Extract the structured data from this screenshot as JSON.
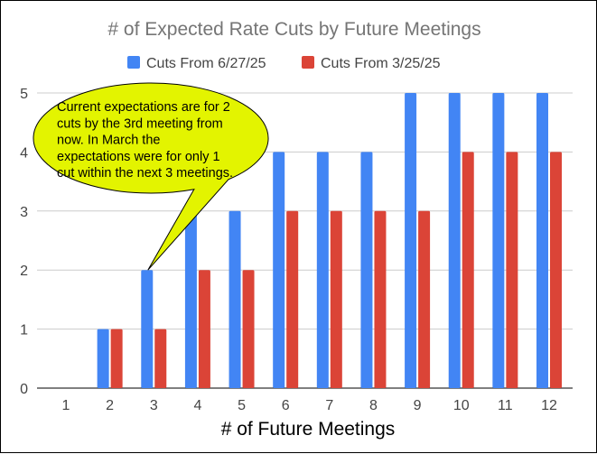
{
  "chart_data": {
    "type": "bar",
    "title": "# of Expected Rate Cuts by Future Meetings",
    "xlabel": "# of Future Meetings",
    "ylabel": "",
    "categories": [
      "1",
      "2",
      "3",
      "4",
      "5",
      "6",
      "7",
      "8",
      "9",
      "10",
      "11",
      "12"
    ],
    "series": [
      {
        "name": "Cuts From 6/27/25",
        "color": "#4285f4",
        "values": [
          0,
          1,
          2,
          3,
          3,
          4,
          4,
          4,
          5,
          5,
          5,
          5
        ]
      },
      {
        "name": "Cuts From 3/25/25",
        "color": "#db4437",
        "values": [
          0,
          1,
          1,
          2,
          2,
          3,
          3,
          3,
          3,
          4,
          4,
          4
        ]
      }
    ],
    "ylim": [
      0,
      5
    ],
    "yticks": [
      "0",
      "1",
      "2",
      "3",
      "4",
      "5"
    ],
    "grid": true,
    "legend": "top-center",
    "annotation": {
      "lines": [
        "Current expectations are for 2",
        "cuts by the 3rd meeting from",
        "now. In March the",
        "expectations were for only 1",
        "cut within the next 3 meetings."
      ],
      "points_to_category": "3",
      "fill": "#e3f400"
    }
  }
}
